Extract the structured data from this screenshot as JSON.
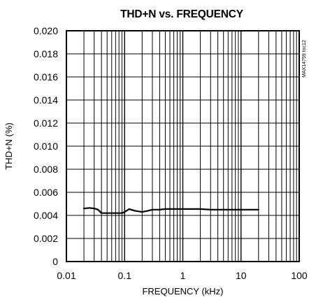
{
  "chart_data": {
    "type": "line",
    "title": "THD+N vs. FREQUENCY",
    "xlabel": "FREQUENCY (kHz)",
    "ylabel": "THD+N (%)",
    "x_scale": "log",
    "xlim": [
      0.01,
      100
    ],
    "ylim": [
      0,
      0.02
    ],
    "x_ticks": [
      0.01,
      0.1,
      1,
      10,
      100
    ],
    "x_tick_labels": [
      "0.01",
      "0.1",
      "1",
      "10",
      "100"
    ],
    "y_ticks": [
      0,
      0.002,
      0.004,
      0.006,
      0.008,
      0.01,
      0.012,
      0.014,
      0.016,
      0.018,
      0.02
    ],
    "y_tick_labels": [
      "0",
      "0.002",
      "0.004",
      "0.006",
      "0.008",
      "0.010",
      "0.012",
      "0.014",
      "0.016",
      "0.018",
      "0.020"
    ],
    "grid": true,
    "legend": "none",
    "line_color": "#000000",
    "series": [
      {
        "x": [
          0.02,
          0.025,
          0.03,
          0.035,
          0.04,
          0.05,
          0.06,
          0.07,
          0.08,
          0.09,
          0.1,
          0.12,
          0.15,
          0.2,
          0.25,
          0.3,
          0.4,
          0.5,
          0.7,
          1,
          1.5,
          2,
          3,
          5,
          7,
          10,
          15,
          20
        ],
        "y": [
          0.0046,
          0.00465,
          0.0046,
          0.0045,
          0.0042,
          0.0042,
          0.0042,
          0.0042,
          0.0042,
          0.0042,
          0.0043,
          0.00455,
          0.0044,
          0.0043,
          0.0044,
          0.0045,
          0.0045,
          0.00455,
          0.00455,
          0.00455,
          0.00455,
          0.00455,
          0.0045,
          0.0045,
          0.0045,
          0.0045,
          0.0045,
          0.0045
        ]
      }
    ],
    "annotation": "MAX14759 toc12"
  }
}
